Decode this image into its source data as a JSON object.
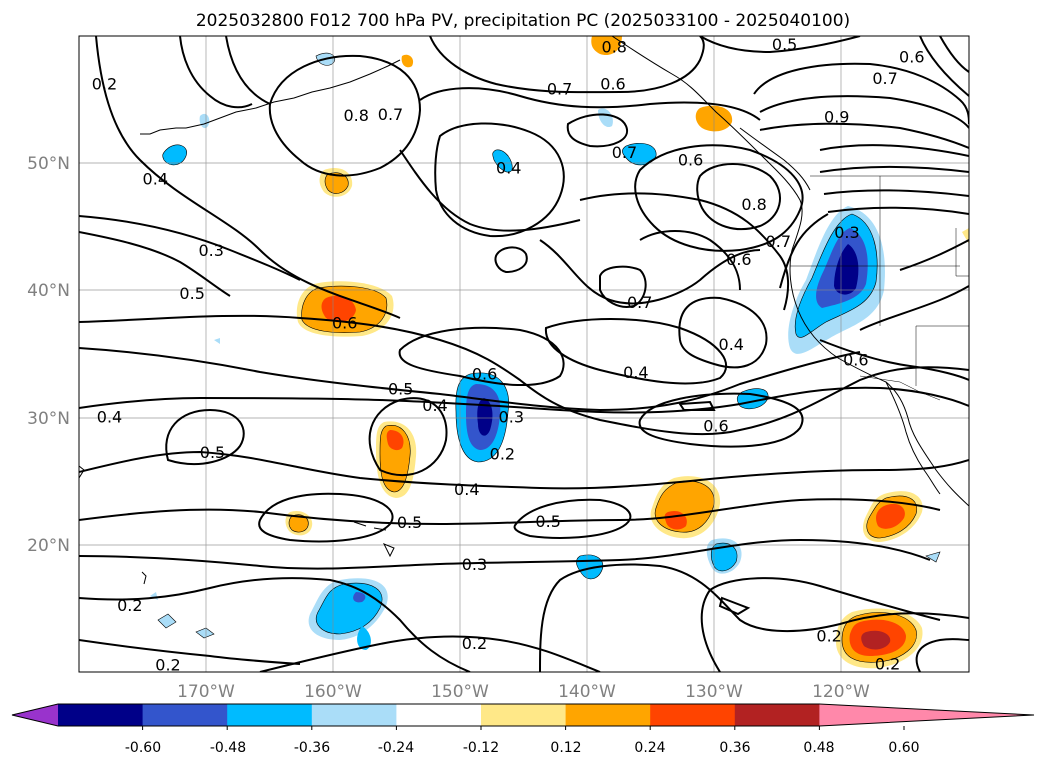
{
  "chart_data": {
    "type": "contour-map",
    "title": "2025032800 F012 700 hPa PV, precipitation PC (2025033100 - 2025040100)",
    "map": {
      "lon_range": [
        -180,
        -110
      ],
      "lat_range": [
        10,
        60
      ],
      "grid": true,
      "x_ticks": [
        "170°W",
        "160°W",
        "150°W",
        "140°W",
        "130°W",
        "120°W"
      ],
      "x_tick_lons": [
        -170,
        -160,
        -150,
        -140,
        -130,
        -120
      ],
      "y_ticks": [
        "50°N",
        "40°N",
        "30°N",
        "20°N"
      ],
      "y_tick_lats": [
        50,
        40,
        30,
        20
      ]
    },
    "colorbar": {
      "orientation": "horizontal",
      "extend": "both",
      "ticks": [
        "-0.60",
        "-0.48",
        "-0.36",
        "-0.24",
        "-0.12",
        "0.12",
        "0.24",
        "0.36",
        "0.48",
        "0.60"
      ],
      "colors": [
        "#9933cc",
        "#000088",
        "#3355cc",
        "#00bbff",
        "#aaddf8",
        "#ffffff",
        "#ffe888",
        "#ffa500",
        "#ff4400",
        "#b22222",
        "#ff88aa"
      ]
    },
    "contour_labels": [
      {
        "text": "0.2",
        "lon": -178,
        "lat": 56.2
      },
      {
        "text": "0.4",
        "lon": -174,
        "lat": 48.7
      },
      {
        "text": "0.8",
        "lon": -158.2,
        "lat": 53.7
      },
      {
        "text": "0.7",
        "lon": -155.5,
        "lat": 53.8
      },
      {
        "text": "0.7",
        "lon": -142.2,
        "lat": 55.8
      },
      {
        "text": "0.6",
        "lon": -138,
        "lat": 56.2
      },
      {
        "text": "0.8",
        "lon": -137.9,
        "lat": 59.1
      },
      {
        "text": "0.5",
        "lon": -124.5,
        "lat": 59.3
      },
      {
        "text": "0.7",
        "lon": -116.6,
        "lat": 56.6
      },
      {
        "text": "0.6",
        "lon": -114.5,
        "lat": 58.3
      },
      {
        "text": "0.9",
        "lon": -120.4,
        "lat": 53.6
      },
      {
        "text": "0.4",
        "lon": -146.2,
        "lat": 49.6
      },
      {
        "text": "0.7",
        "lon": -137.1,
        "lat": 50.8
      },
      {
        "text": "0.6",
        "lon": -131.9,
        "lat": 50.2
      },
      {
        "text": "0.8",
        "lon": -126.9,
        "lat": 46.7
      },
      {
        "text": "0.7",
        "lon": -125,
        "lat": 43.8
      },
      {
        "text": "0.6",
        "lon": -128.1,
        "lat": 42.4
      },
      {
        "text": "0.3",
        "lon": -119.6,
        "lat": 44.5
      },
      {
        "text": "0.3",
        "lon": -169.6,
        "lat": 43.1
      },
      {
        "text": "0.5",
        "lon": -171.1,
        "lat": 39.7
      },
      {
        "text": "0.6",
        "lon": -159.1,
        "lat": 37.4
      },
      {
        "text": "0.7",
        "lon": -135.9,
        "lat": 39.0
      },
      {
        "text": "0.4",
        "lon": -128.7,
        "lat": 35.7
      },
      {
        "text": "0.4",
        "lon": -136.2,
        "lat": 33.5
      },
      {
        "text": "0.6",
        "lon": -148.1,
        "lat": 33.4
      },
      {
        "text": "0.6",
        "lon": -118.9,
        "lat": 34.5
      },
      {
        "text": "0.5",
        "lon": -154.7,
        "lat": 32.2
      },
      {
        "text": "0.4",
        "lon": -152.0,
        "lat": 30.9
      },
      {
        "text": "0.3",
        "lon": -146.0,
        "lat": 30.0
      },
      {
        "text": "0.4",
        "lon": -177.6,
        "lat": 30.0
      },
      {
        "text": "0.6",
        "lon": -129.9,
        "lat": 29.3
      },
      {
        "text": "0.5",
        "lon": -169.5,
        "lat": 27.2
      },
      {
        "text": "0.2",
        "lon": -146.7,
        "lat": 27.1
      },
      {
        "text": "0.4",
        "lon": -149.5,
        "lat": 24.3
      },
      {
        "text": "0.5",
        "lon": -154.0,
        "lat": 21.7
      },
      {
        "text": "0.5",
        "lon": -143.1,
        "lat": 21.8
      },
      {
        "text": "0.3",
        "lon": -148.9,
        "lat": 18.4
      },
      {
        "text": "0.2",
        "lon": -176.0,
        "lat": 15.2
      },
      {
        "text": "0.2",
        "lon": -173.0,
        "lat": 10.5
      },
      {
        "text": "0.2",
        "lon": -148.9,
        "lat": 12.2
      },
      {
        "text": "0.2",
        "lon": -121.0,
        "lat": 12.8
      },
      {
        "text": "0.2",
        "lon": -116.4,
        "lat": 10.6
      }
    ]
  }
}
